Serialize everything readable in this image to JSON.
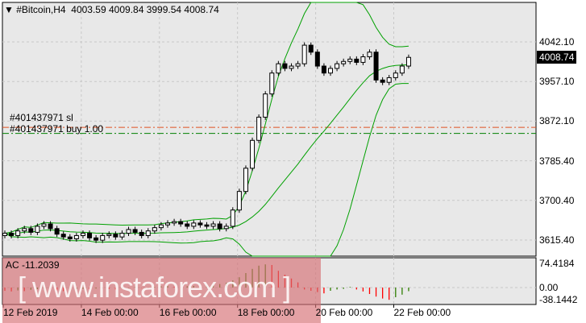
{
  "header": {
    "symbol": "#Bitcoin,H4",
    "ohlc": "4003.59 4009.84 3999.54 4008.74"
  },
  "orders": {
    "sl": "#401437971 sl",
    "buy": "#401437971 buy 1.00"
  },
  "indicator": {
    "label": "AC -11.2039",
    "axis": [
      "74.4184",
      "0.00",
      "-38.1442"
    ]
  },
  "watermark": "[ www.instaforex.com ]",
  "colors": {
    "background": "#e8e8e8",
    "bullish": "#ffffff",
    "bearish": "#000000",
    "bands": "#00a000",
    "sl_line": "#e05020",
    "buy_line": "#008000",
    "ac_up": "#2e7d00",
    "ac_down": "#ff0000"
  },
  "chart_data": {
    "type": "candlestick",
    "current_price": "4008.74",
    "price_ticks": [
      "4042.10",
      "3957.10",
      "3872.10",
      "3785.40",
      "3700.40",
      "3615.40"
    ],
    "time_ticks": [
      "12 Feb 2019",
      "14 Feb 00:00",
      "16 Feb 00:00",
      "18 Feb 00:00",
      "20 Feb 00:00",
      "22 Feb 00:00"
    ],
    "ylim": [
      3585,
      4130
    ],
    "sl_level": 3858,
    "buy_level": 3845,
    "close": [
      3630,
      3625,
      3635,
      3640,
      3632,
      3645,
      3650,
      3640,
      3628,
      3622,
      3618,
      3625,
      3630,
      3620,
      3615,
      3625,
      3628,
      3622,
      3630,
      3638,
      3632,
      3625,
      3635,
      3642,
      3648,
      3652,
      3655,
      3650,
      3645,
      3652,
      3648,
      3645,
      3650,
      3640,
      3645,
      3680,
      3720,
      3770,
      3830,
      3880,
      3930,
      3975,
      3995,
      3985,
      3990,
      3995,
      4035,
      4020,
      3990,
      3975,
      3985,
      3995,
      4000,
      4005,
      3998,
      4010,
      4020,
      3960,
      3955,
      3965,
      3975,
      3990,
      4008.74
    ],
    "ac": [
      -10,
      -12,
      -9,
      -11,
      -7,
      -5,
      -3,
      -6,
      -9,
      -11,
      -8,
      -5,
      -4,
      -6,
      -3,
      -2,
      -4,
      -6,
      -3,
      -1,
      2,
      -1,
      -3,
      2,
      4,
      5,
      3,
      1,
      4,
      5,
      3,
      6,
      8,
      11,
      15,
      22,
      32,
      45,
      58,
      68,
      72,
      70,
      52,
      40,
      28,
      16,
      -6,
      -10,
      -14,
      -18,
      -10,
      -6,
      -4,
      2,
      -6,
      -12,
      -20,
      -28,
      -34,
      -38,
      -30,
      -22,
      -11.2
    ],
    "ac_ylim": [
      -45,
      80
    ]
  }
}
